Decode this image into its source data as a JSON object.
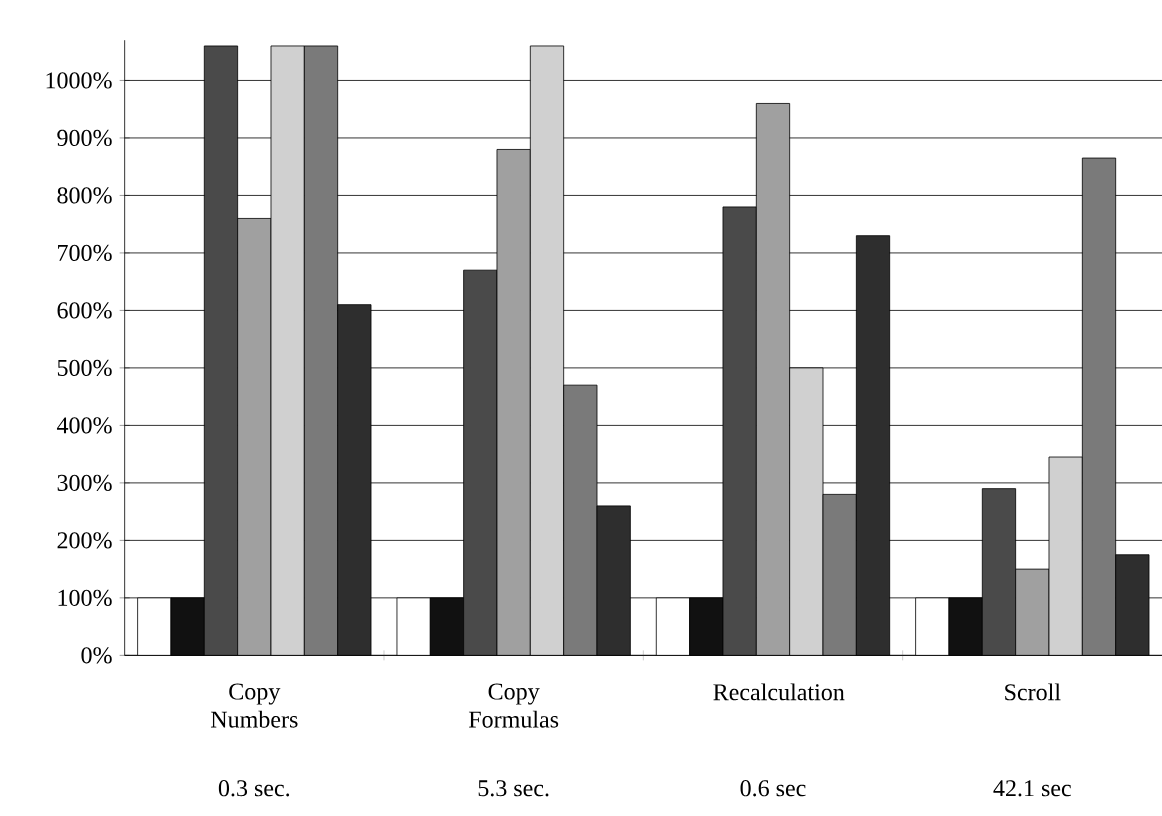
{
  "chart_data": {
    "type": "bar",
    "categories": [
      "Copy Numbers",
      "Copy Formulas",
      "Recalculation",
      "Scroll"
    ],
    "series": [
      {
        "color": "#ffffff",
        "values": [
          100,
          100,
          100,
          100
        ]
      },
      {
        "color": "#111111",
        "values": [
          100,
          100,
          100,
          100
        ]
      },
      {
        "color": "#4a4a4a",
        "values": [
          1060,
          670,
          780,
          290
        ]
      },
      {
        "color": "#a0a0a0",
        "values": [
          760,
          880,
          960,
          150
        ]
      },
      {
        "color": "#d0d0d0",
        "values": [
          1060,
          1060,
          500,
          345
        ]
      },
      {
        "color": "#7a7a7a",
        "values": [
          1060,
          470,
          280,
          865
        ]
      },
      {
        "color": "#2e2e2e",
        "values": [
          610,
          260,
          730,
          175
        ]
      }
    ],
    "ylim": [
      0,
      1070
    ],
    "yticks": [
      {
        "value": 0,
        "label": "0%"
      },
      {
        "value": 100,
        "label": "100%"
      },
      {
        "value": 200,
        "label": "200%"
      },
      {
        "value": 300,
        "label": "300%"
      },
      {
        "value": 400,
        "label": "400%"
      },
      {
        "value": 500,
        "label": "500%"
      },
      {
        "value": 600,
        "label": "600%"
      },
      {
        "value": 700,
        "label": "700%"
      },
      {
        "value": 800,
        "label": "800%"
      },
      {
        "value": 900,
        "label": "900%"
      },
      {
        "value": 1000,
        "label": "1000%"
      }
    ],
    "grid": "y",
    "annotations": [
      "0.3 sec.",
      "5.3 sec.",
      "0.6 sec",
      "42.1 sec"
    ]
  }
}
